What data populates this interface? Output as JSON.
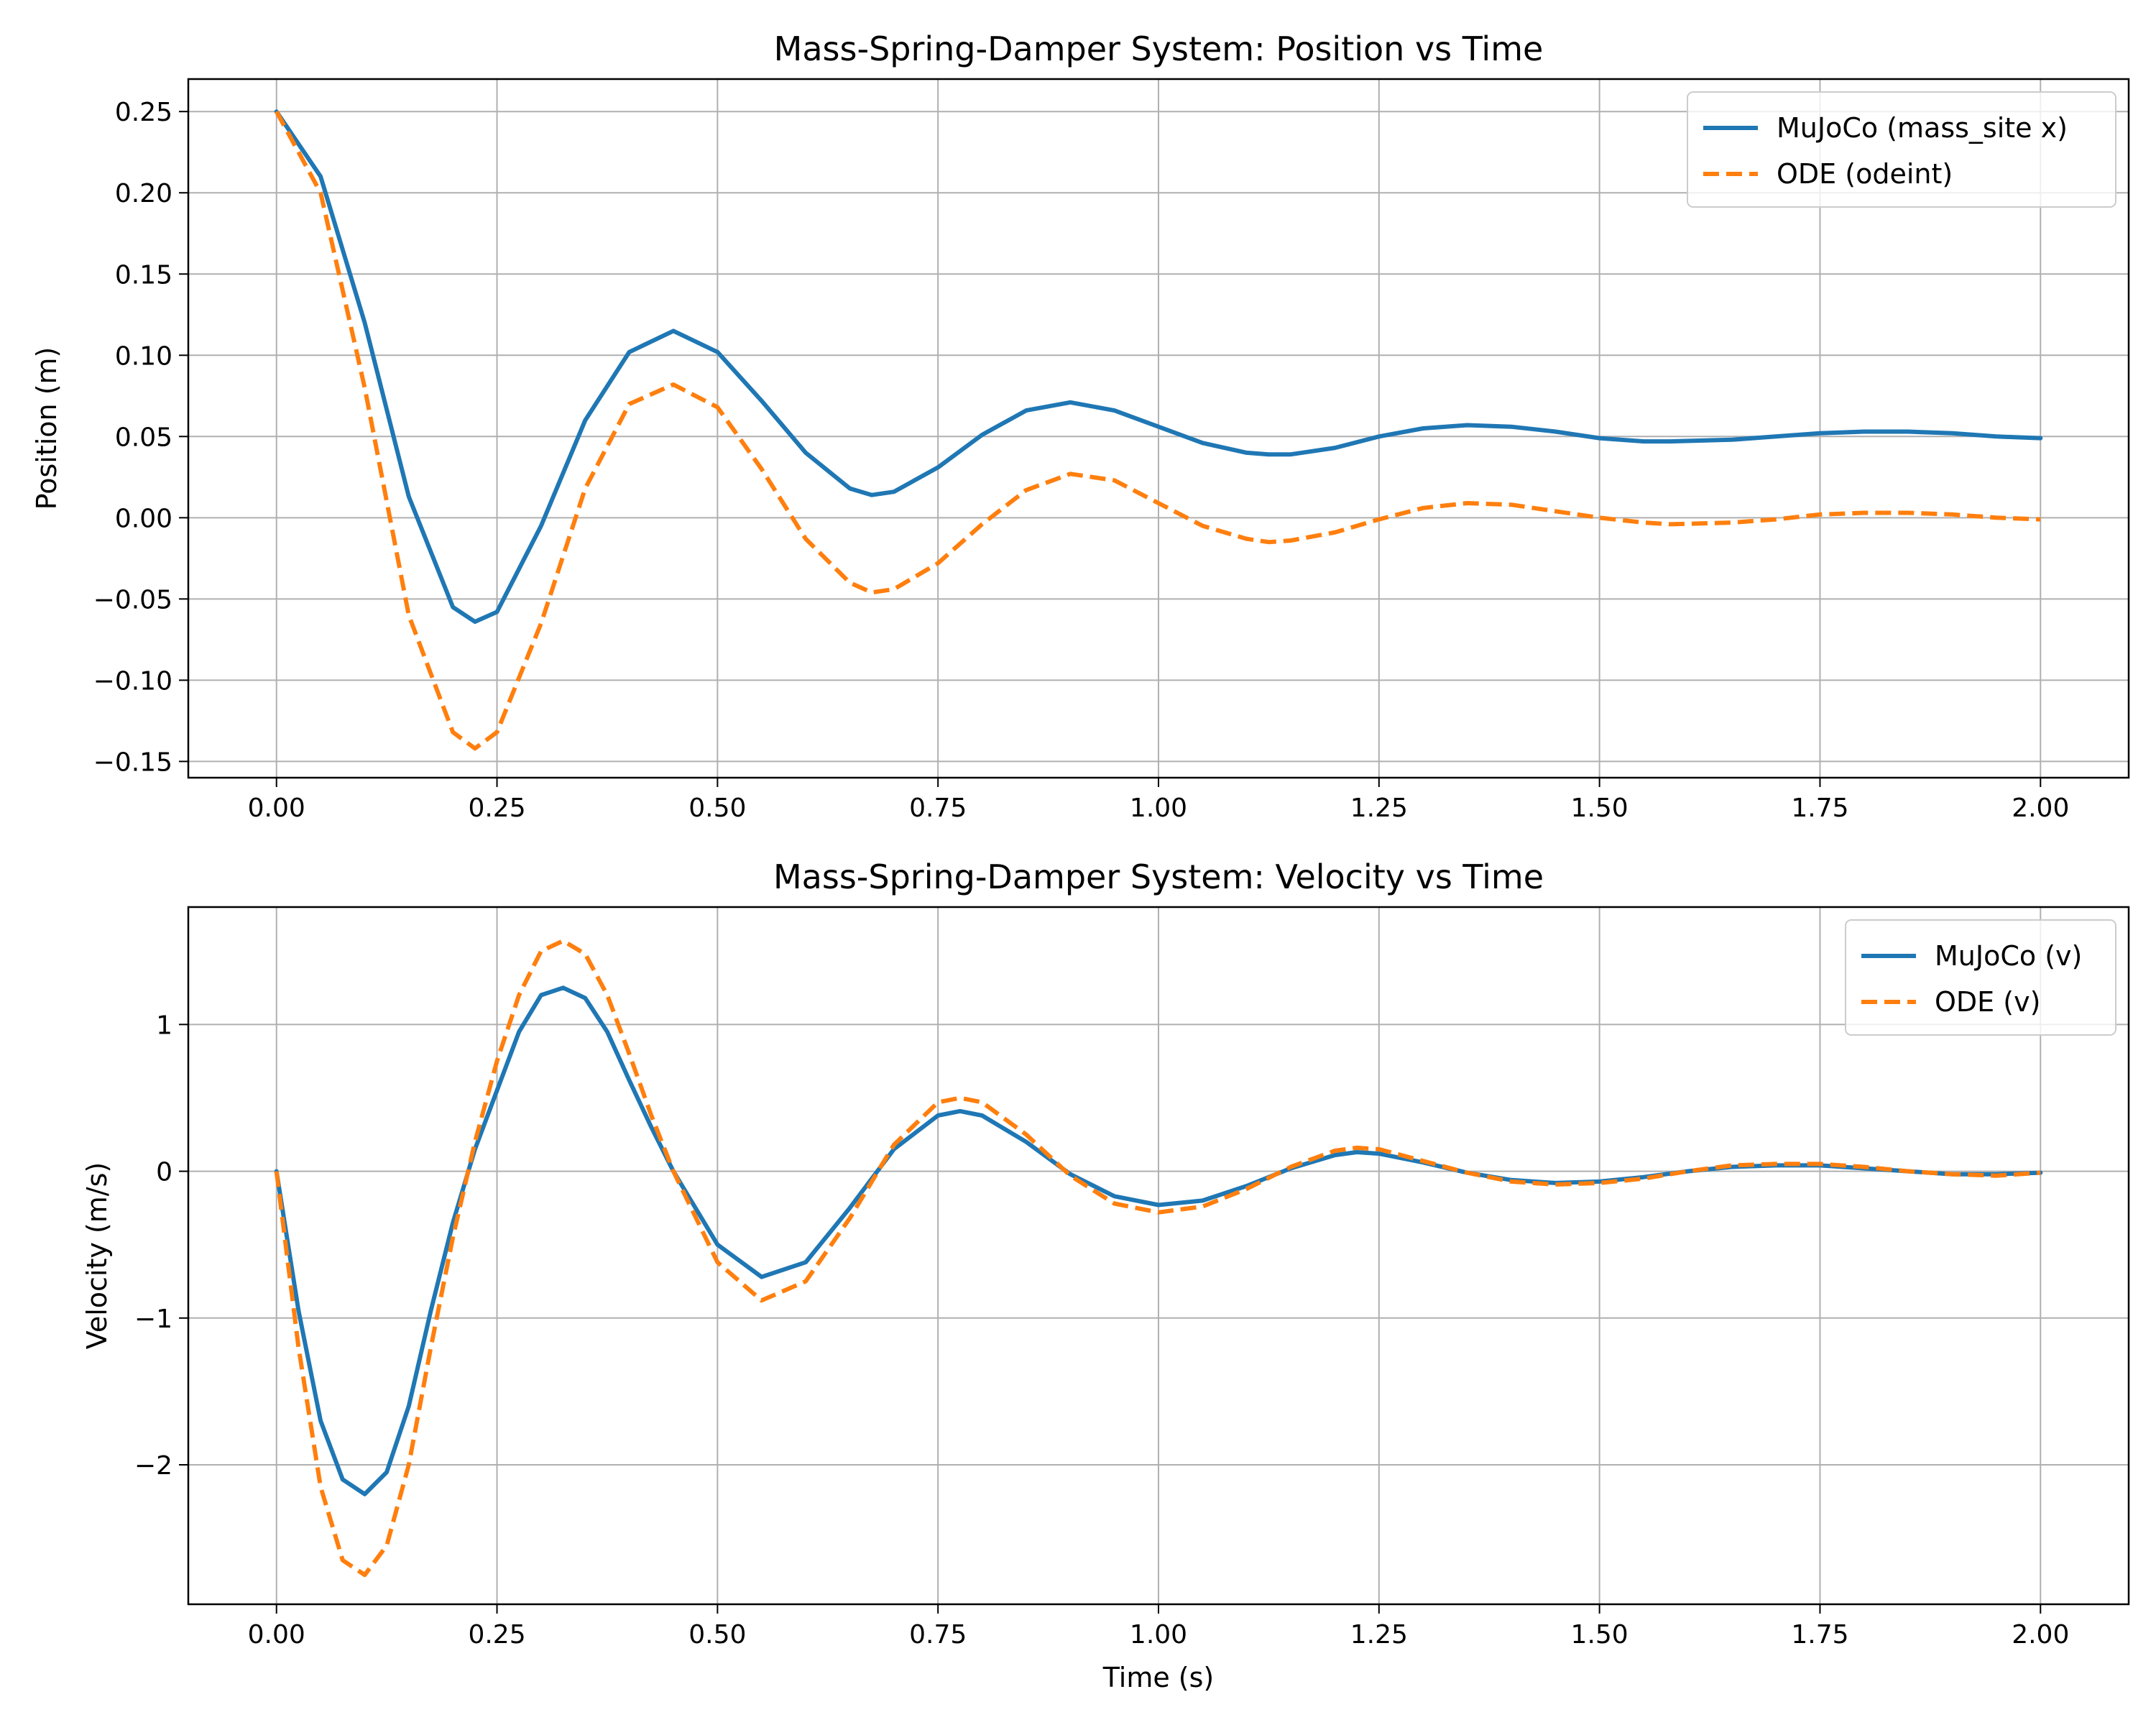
{
  "chart_data": [
    {
      "type": "line",
      "title": "Mass-Spring-Damper System: Position vs Time",
      "xlabel": "",
      "ylabel": "Position (m)",
      "xlim": [
        -0.1,
        2.1
      ],
      "ylim": [
        -0.16,
        0.27
      ],
      "xticks": [
        0.0,
        0.25,
        0.5,
        0.75,
        1.0,
        1.25,
        1.5,
        1.75,
        2.0
      ],
      "xtick_labels": [
        "0.00",
        "0.25",
        "0.50",
        "0.75",
        "1.00",
        "1.25",
        "1.50",
        "1.75",
        "2.00"
      ],
      "yticks": [
        -0.15,
        -0.1,
        -0.05,
        0.0,
        0.05,
        0.1,
        0.15,
        0.2,
        0.25
      ],
      "ytick_labels": [
        "−0.15",
        "−0.10",
        "−0.05",
        "0.00",
        "0.05",
        "0.10",
        "0.15",
        "0.20",
        "0.25"
      ],
      "grid": true,
      "legend": "top-right",
      "series": [
        {
          "name": "MuJoCo (mass_site x)",
          "color": "#1f77b4",
          "style": "solid",
          "x": [
            0.0,
            0.05,
            0.1,
            0.15,
            0.2,
            0.225,
            0.25,
            0.3,
            0.35,
            0.4,
            0.45,
            0.5,
            0.55,
            0.6,
            0.65,
            0.675,
            0.7,
            0.75,
            0.8,
            0.85,
            0.9,
            0.95,
            1.0,
            1.05,
            1.1,
            1.125,
            1.15,
            1.2,
            1.25,
            1.3,
            1.35,
            1.4,
            1.45,
            1.5,
            1.55,
            1.58,
            1.65,
            1.7,
            1.75,
            1.8,
            1.85,
            1.9,
            1.95,
            2.0
          ],
          "y": [
            0.25,
            0.21,
            0.12,
            0.013,
            -0.055,
            -0.064,
            -0.058,
            -0.005,
            0.06,
            0.102,
            0.115,
            0.102,
            0.072,
            0.04,
            0.018,
            0.014,
            0.016,
            0.031,
            0.051,
            0.066,
            0.071,
            0.066,
            0.056,
            0.046,
            0.04,
            0.039,
            0.039,
            0.043,
            0.05,
            0.055,
            0.057,
            0.056,
            0.053,
            0.049,
            0.047,
            0.047,
            0.048,
            0.05,
            0.052,
            0.053,
            0.053,
            0.052,
            0.05,
            0.049
          ]
        },
        {
          "name": "ODE (odeint)",
          "color": "#ff7f0e",
          "style": "dashed",
          "x": [
            0.0,
            0.05,
            0.1,
            0.15,
            0.2,
            0.225,
            0.25,
            0.3,
            0.35,
            0.4,
            0.45,
            0.5,
            0.55,
            0.6,
            0.65,
            0.675,
            0.7,
            0.75,
            0.8,
            0.85,
            0.9,
            0.95,
            1.0,
            1.05,
            1.1,
            1.125,
            1.15,
            1.2,
            1.25,
            1.3,
            1.35,
            1.4,
            1.45,
            1.5,
            1.55,
            1.58,
            1.65,
            1.7,
            1.75,
            1.8,
            1.85,
            1.9,
            1.95,
            2.0
          ],
          "y": [
            0.25,
            0.2,
            0.08,
            -0.06,
            -0.132,
            -0.142,
            -0.132,
            -0.065,
            0.018,
            0.07,
            0.082,
            0.068,
            0.03,
            -0.013,
            -0.04,
            -0.046,
            -0.044,
            -0.028,
            -0.004,
            0.017,
            0.027,
            0.023,
            0.009,
            -0.005,
            -0.013,
            -0.015,
            -0.014,
            -0.009,
            -0.001,
            0.006,
            0.009,
            0.008,
            0.004,
            0.0,
            -0.003,
            -0.004,
            -0.003,
            -0.001,
            0.002,
            0.003,
            0.003,
            0.002,
            0.0,
            -0.001
          ]
        }
      ]
    },
    {
      "type": "line",
      "title": "Mass-Spring-Damper System: Velocity vs Time",
      "xlabel": "Time (s)",
      "ylabel": "Velocity (m/s)",
      "xlim": [
        -0.1,
        2.1
      ],
      "ylim": [
        -2.95,
        1.8
      ],
      "xticks": [
        0.0,
        0.25,
        0.5,
        0.75,
        1.0,
        1.25,
        1.5,
        1.75,
        2.0
      ],
      "xtick_labels": [
        "0.00",
        "0.25",
        "0.50",
        "0.75",
        "1.00",
        "1.25",
        "1.50",
        "1.75",
        "2.00"
      ],
      "yticks": [
        -2,
        -1,
        0,
        1
      ],
      "ytick_labels": [
        "−2",
        "−1",
        "0",
        "1"
      ],
      "grid": true,
      "legend": "top-right",
      "series": [
        {
          "name": "MuJoCo (v)",
          "color": "#1f77b4",
          "style": "solid",
          "x": [
            0.0,
            0.025,
            0.05,
            0.075,
            0.1,
            0.125,
            0.15,
            0.175,
            0.2,
            0.225,
            0.25,
            0.275,
            0.3,
            0.325,
            0.35,
            0.375,
            0.4,
            0.425,
            0.45,
            0.5,
            0.55,
            0.6,
            0.65,
            0.7,
            0.75,
            0.775,
            0.8,
            0.85,
            0.9,
            0.95,
            1.0,
            1.05,
            1.1,
            1.15,
            1.2,
            1.225,
            1.25,
            1.3,
            1.35,
            1.4,
            1.45,
            1.5,
            1.55,
            1.6,
            1.65,
            1.7,
            1.75,
            1.8,
            1.85,
            1.9,
            1.95,
            2.0
          ],
          "y": [
            0.0,
            -0.95,
            -1.7,
            -2.1,
            -2.2,
            -2.05,
            -1.6,
            -0.95,
            -0.35,
            0.15,
            0.55,
            0.95,
            1.2,
            1.25,
            1.18,
            0.95,
            0.62,
            0.3,
            0.0,
            -0.5,
            -0.72,
            -0.62,
            -0.25,
            0.15,
            0.38,
            0.41,
            0.38,
            0.2,
            -0.02,
            -0.17,
            -0.23,
            -0.2,
            -0.1,
            0.02,
            0.11,
            0.13,
            0.12,
            0.06,
            -0.01,
            -0.06,
            -0.08,
            -0.07,
            -0.04,
            0.0,
            0.03,
            0.04,
            0.04,
            0.02,
            0.0,
            -0.02,
            -0.02,
            -0.01
          ]
        },
        {
          "name": "ODE (v)",
          "color": "#ff7f0e",
          "style": "dashed",
          "x": [
            0.0,
            0.025,
            0.05,
            0.075,
            0.1,
            0.125,
            0.15,
            0.175,
            0.2,
            0.225,
            0.25,
            0.275,
            0.3,
            0.325,
            0.35,
            0.375,
            0.4,
            0.425,
            0.45,
            0.5,
            0.55,
            0.6,
            0.65,
            0.7,
            0.75,
            0.775,
            0.8,
            0.85,
            0.9,
            0.95,
            1.0,
            1.05,
            1.1,
            1.15,
            1.2,
            1.225,
            1.25,
            1.3,
            1.35,
            1.4,
            1.45,
            1.5,
            1.55,
            1.6,
            1.65,
            1.7,
            1.75,
            1.8,
            1.85,
            1.9,
            1.95,
            2.0
          ],
          "y": [
            0.0,
            -1.2,
            -2.15,
            -2.65,
            -2.75,
            -2.55,
            -2.0,
            -1.2,
            -0.45,
            0.2,
            0.75,
            1.2,
            1.5,
            1.57,
            1.48,
            1.2,
            0.8,
            0.38,
            0.0,
            -0.62,
            -0.88,
            -0.75,
            -0.32,
            0.18,
            0.47,
            0.5,
            0.47,
            0.25,
            -0.03,
            -0.22,
            -0.28,
            -0.24,
            -0.12,
            0.03,
            0.14,
            0.16,
            0.15,
            0.07,
            -0.01,
            -0.07,
            -0.09,
            -0.08,
            -0.05,
            0.0,
            0.04,
            0.05,
            0.05,
            0.03,
            0.0,
            -0.02,
            -0.03,
            -0.01
          ]
        }
      ]
    }
  ]
}
